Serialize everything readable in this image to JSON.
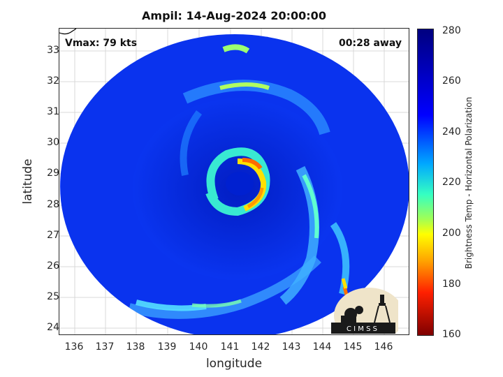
{
  "title": "Ampil: 14-Aug-2024 20:00:00",
  "annotations": {
    "vmax": "Vmax: 79 kts",
    "time_away": "00:28 away"
  },
  "axes": {
    "xlabel": "longitude",
    "ylabel": "latitude",
    "x_ticks": [
      "136",
      "137",
      "138",
      "139",
      "140",
      "141",
      "142",
      "143",
      "144",
      "145",
      "146"
    ],
    "y_ticks": [
      "33",
      "32",
      "31",
      "30",
      "29",
      "28",
      "27",
      "26",
      "25",
      "24"
    ]
  },
  "colorbar": {
    "label": "Brightness Temp - Horizontal Polarization",
    "ticks": [
      "280",
      "260",
      "240",
      "220",
      "200",
      "180",
      "160"
    ],
    "range": [
      160,
      280
    ]
  },
  "logo": {
    "text": "C I M S S"
  },
  "colors": {
    "background_scene": "#0a2fe8",
    "swath_bg": "#ffffff"
  }
}
